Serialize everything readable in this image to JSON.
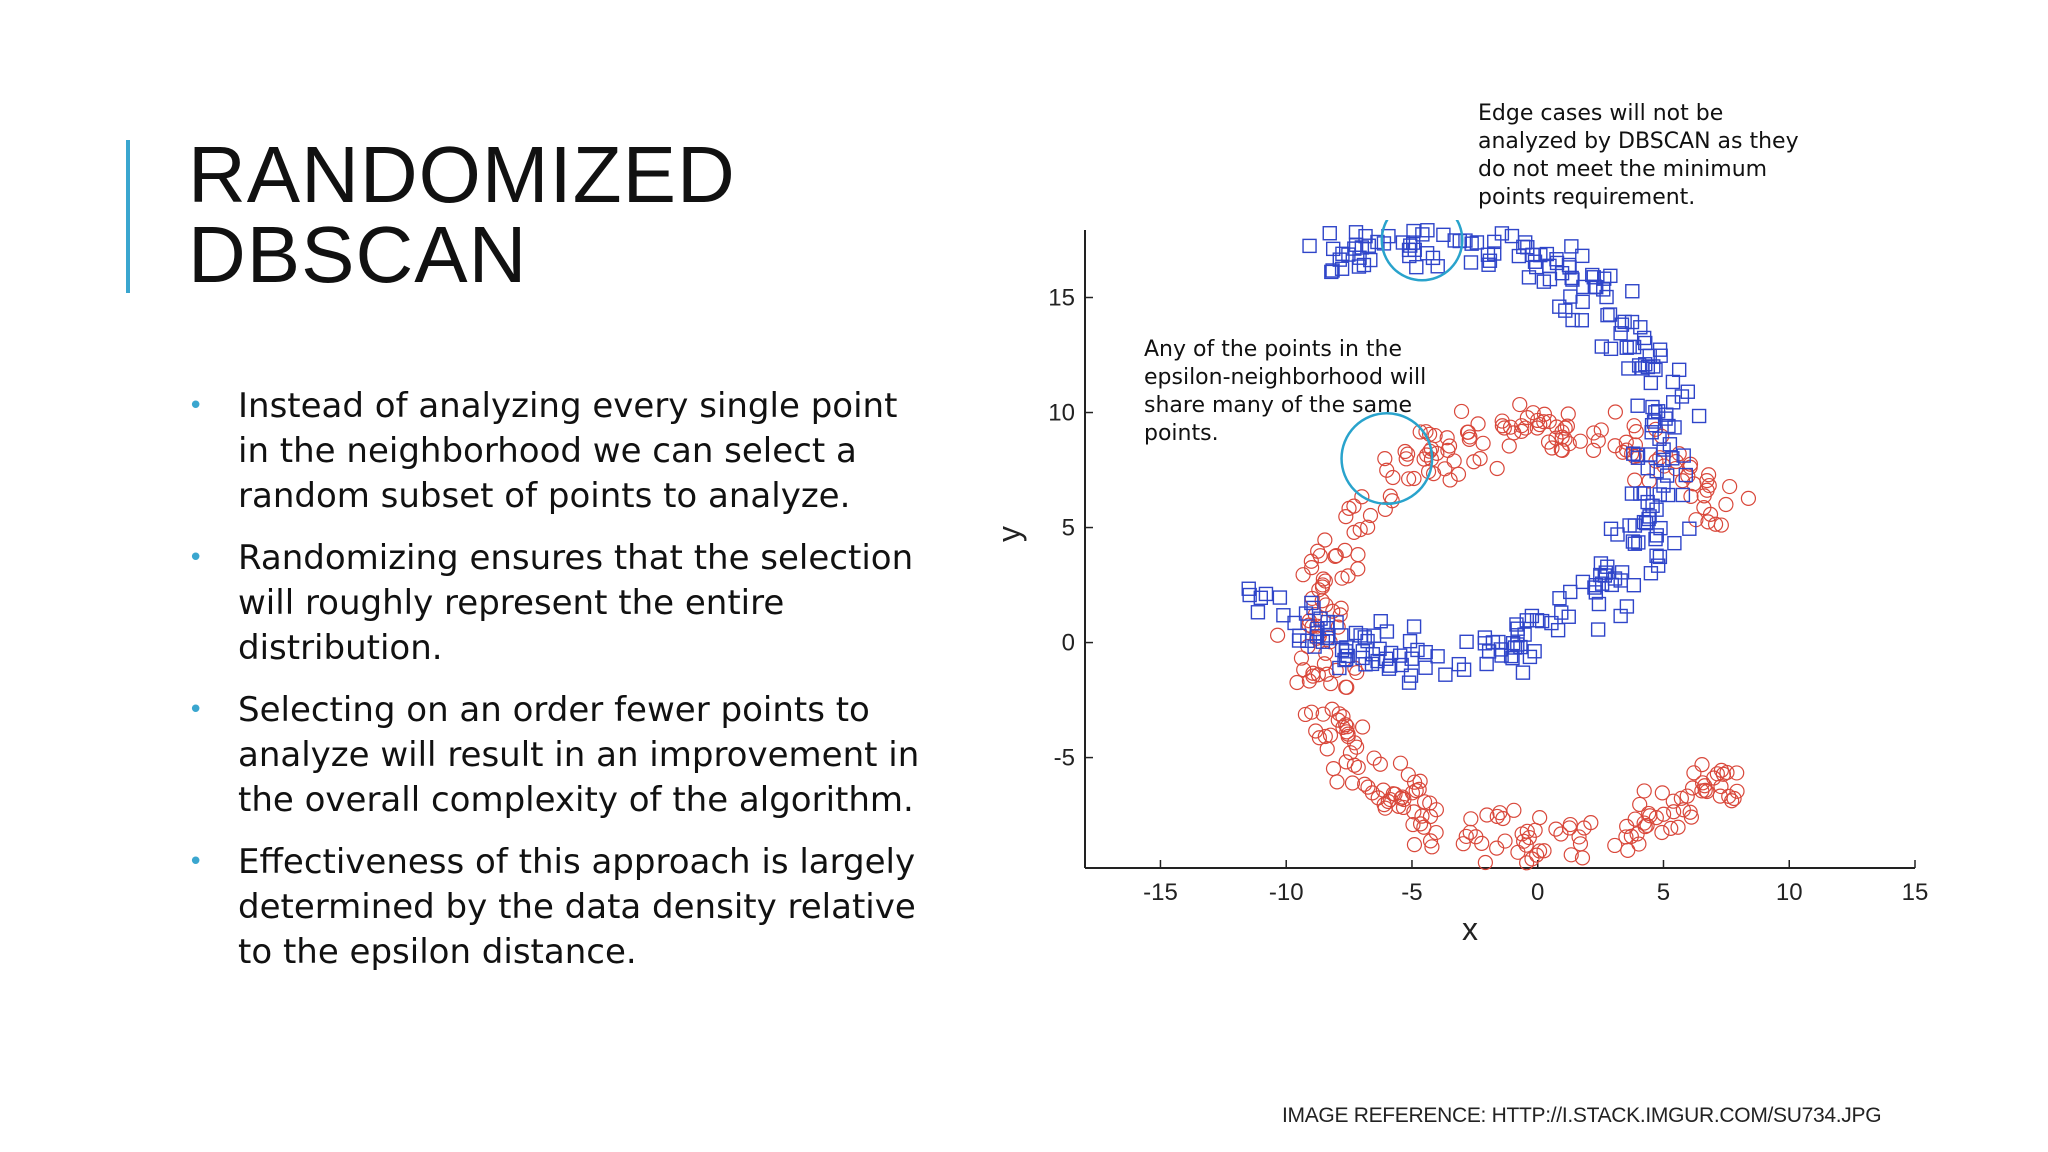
{
  "slide": {
    "title_lines": [
      "RANDOMIZED",
      "DBSCAN"
    ],
    "accent_color": "#3aa6cf",
    "bullets": [
      "Instead of analyzing every single point in the neighborhood we can select a random subset of points to analyze.",
      "Randomizing ensures that the selection will roughly represent the entire distribution.",
      "Selecting on an order fewer points to analyze will result in an improvement in the overall complexity of the algorithm.",
      "Effectiveness of this approach is largely determined by the data density relative to the epsilon distance."
    ],
    "annotations": {
      "edge_cases": "Edge cases will not be analyzed by DBSCAN as they do not meet the minimum points requirement.",
      "epsilon": "Any of the points in the epsilon-neighborhood will share many of the same points."
    },
    "image_reference": "IMAGE REFERENCE: HTTP://I.STACK.IMGUR.COM/SU734.JPG"
  },
  "chart_data": {
    "type": "scatter",
    "xlabel": "x",
    "ylabel": "y",
    "xlim": [
      -18,
      15
    ],
    "ylim": [
      -9.8,
      17.5
    ],
    "xticks": [
      -15,
      -10,
      -5,
      0,
      5,
      10,
      15
    ],
    "yticks": [
      -5,
      0,
      5,
      10,
      15
    ],
    "grid": false,
    "series": [
      {
        "marker": "circle",
        "color": "#d9483b",
        "cluster": "moon",
        "center": [
          0.3,
          0.2
        ],
        "radius": 9.2,
        "angle_range_deg": [
          35,
          325
        ],
        "count": 330
      },
      {
        "marker": "square",
        "color": "#2f45c9",
        "cluster": "moon",
        "center": [
          -4.2,
          8.5
        ],
        "radius": 9.3,
        "angle_range_deg": [
          -140,
          120
        ],
        "count": 300
      }
    ],
    "highlight_circles": [
      {
        "x": -4.6,
        "y": 17.5,
        "r": 1.6,
        "color": "#29a3cc"
      },
      {
        "x": -6.0,
        "y": 8.0,
        "r": 1.8,
        "color": "#29a3cc"
      }
    ]
  }
}
